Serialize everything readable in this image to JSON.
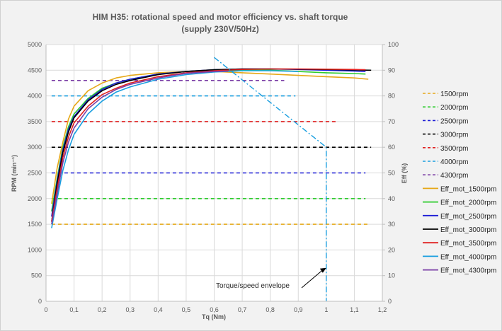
{
  "chart_data": {
    "type": "line",
    "title_line1": "HIM H35: rotational speed and motor efficiency vs. shaft torque",
    "title_line2": "(supply 230V/50Hz)",
    "xlabel": "Tq (Nm)",
    "ylabel_left": "RPM (min⁻¹)",
    "ylabel_right": "Eff (%)",
    "xlim": [
      0,
      1.2
    ],
    "ylim_left": [
      0,
      5000
    ],
    "ylim_right": [
      0,
      100
    ],
    "x_ticks": [
      "0",
      "0,1",
      "0,2",
      "0,3",
      "0,4",
      "0,5",
      "0,6",
      "0,7",
      "0,8",
      "0,9",
      "1",
      "1,1",
      "1,2"
    ],
    "y_left_ticks": [
      "0",
      "500",
      "1000",
      "1500",
      "2000",
      "2500",
      "3000",
      "3500",
      "4000",
      "4500",
      "5000"
    ],
    "y_right_ticks": [
      "0",
      "10",
      "20",
      "30",
      "40",
      "50",
      "60",
      "70",
      "80",
      "90",
      "100"
    ],
    "grid": true,
    "legend_position": "right",
    "speed_series": [
      {
        "name": "1500rpm",
        "color": "#e6a817",
        "rpm": 1500,
        "x_range": [
          0.02,
          1.15
        ]
      },
      {
        "name": "2000rpm",
        "color": "#2ecc2e",
        "rpm": 2000,
        "x_range": [
          0.02,
          1.14
        ]
      },
      {
        "name": "2500rpm",
        "color": "#1c1cd6",
        "rpm": 2500,
        "x_range": [
          0.02,
          1.14
        ]
      },
      {
        "name": "3000rpm",
        "color": "#000000",
        "rpm": 3000,
        "x_range": [
          0.02,
          1.16
        ]
      },
      {
        "name": "3500rpm",
        "color": "#e02020",
        "rpm": 3500,
        "x_range": [
          0.02,
          1.04
        ]
      },
      {
        "name": "4000rpm",
        "color": "#1a9fe0",
        "rpm": 4000,
        "x_range": [
          0.02,
          0.89
        ]
      },
      {
        "name": "4300rpm",
        "color": "#7b3fa6",
        "rpm": 4300,
        "x_range": [
          0.02,
          0.85
        ]
      }
    ],
    "efficiency_series": [
      {
        "name": "Eff_mot_1500rpm",
        "color": "#e6a817",
        "points": [
          [
            0.02,
            38
          ],
          [
            0.04,
            52
          ],
          [
            0.06,
            62
          ],
          [
            0.08,
            71
          ],
          [
            0.1,
            76
          ],
          [
            0.15,
            82
          ],
          [
            0.2,
            85
          ],
          [
            0.25,
            87
          ],
          [
            0.3,
            88
          ],
          [
            0.4,
            89
          ],
          [
            0.5,
            89.5
          ],
          [
            0.6,
            89.5
          ],
          [
            0.7,
            89
          ],
          [
            0.8,
            88.5
          ],
          [
            0.9,
            88
          ],
          [
            1.0,
            87.5
          ],
          [
            1.1,
            87
          ],
          [
            1.15,
            86.5
          ]
        ]
      },
      {
        "name": "Eff_mot_2000rpm",
        "color": "#2ecc2e",
        "points": [
          [
            0.02,
            35
          ],
          [
            0.04,
            48
          ],
          [
            0.06,
            60
          ],
          [
            0.08,
            68
          ],
          [
            0.1,
            73
          ],
          [
            0.15,
            79
          ],
          [
            0.2,
            83
          ],
          [
            0.25,
            85
          ],
          [
            0.3,
            86.5
          ],
          [
            0.4,
            88.5
          ],
          [
            0.5,
            89.5
          ],
          [
            0.6,
            90
          ],
          [
            0.7,
            90
          ],
          [
            0.8,
            90
          ],
          [
            0.9,
            89.5
          ],
          [
            1.0,
            89
          ],
          [
            1.1,
            88.7
          ],
          [
            1.14,
            88.5
          ]
        ]
      },
      {
        "name": "Eff_mot_2500rpm",
        "color": "#1c1cd6",
        "points": [
          [
            0.02,
            33
          ],
          [
            0.04,
            47
          ],
          [
            0.06,
            59
          ],
          [
            0.08,
            67
          ],
          [
            0.1,
            72
          ],
          [
            0.15,
            78.5
          ],
          [
            0.2,
            82.5
          ],
          [
            0.25,
            85
          ],
          [
            0.3,
            86.5
          ],
          [
            0.4,
            88.5
          ],
          [
            0.5,
            89.5
          ],
          [
            0.6,
            90.2
          ],
          [
            0.7,
            90.5
          ],
          [
            0.8,
            90.5
          ],
          [
            0.9,
            90.3
          ],
          [
            1.0,
            90
          ],
          [
            1.1,
            89.7
          ],
          [
            1.14,
            89.5
          ]
        ]
      },
      {
        "name": "Eff_mot_3000rpm",
        "color": "#000000",
        "points": [
          [
            0.02,
            31
          ],
          [
            0.04,
            46
          ],
          [
            0.06,
            58
          ],
          [
            0.08,
            66
          ],
          [
            0.1,
            71.5
          ],
          [
            0.15,
            78
          ],
          [
            0.2,
            82
          ],
          [
            0.25,
            84.5
          ],
          [
            0.3,
            86
          ],
          [
            0.4,
            88.3
          ],
          [
            0.5,
            89.5
          ],
          [
            0.6,
            90.2
          ],
          [
            0.7,
            90.5
          ],
          [
            0.8,
            90.5
          ],
          [
            0.9,
            90.4
          ],
          [
            1.0,
            90.3
          ],
          [
            1.1,
            90.1
          ],
          [
            1.16,
            90
          ]
        ]
      },
      {
        "name": "Eff_mot_3500rpm",
        "color": "#e02020",
        "points": [
          [
            0.02,
            31
          ],
          [
            0.04,
            44
          ],
          [
            0.06,
            56
          ],
          [
            0.08,
            64
          ],
          [
            0.1,
            69.5
          ],
          [
            0.15,
            76
          ],
          [
            0.2,
            80.5
          ],
          [
            0.25,
            83
          ],
          [
            0.3,
            85
          ],
          [
            0.4,
            87.5
          ],
          [
            0.5,
            89
          ],
          [
            0.6,
            89.8
          ],
          [
            0.7,
            90.3
          ],
          [
            0.8,
            90.5
          ],
          [
            0.9,
            90.5
          ],
          [
            1.0,
            90.4
          ],
          [
            1.1,
            90.3
          ],
          [
            1.14,
            90.2
          ]
        ]
      },
      {
        "name": "Eff_mot_4000rpm",
        "color": "#1a9fe0",
        "points": [
          [
            0.02,
            28.5
          ],
          [
            0.04,
            40
          ],
          [
            0.06,
            51
          ],
          [
            0.08,
            59
          ],
          [
            0.1,
            65
          ],
          [
            0.15,
            73
          ],
          [
            0.2,
            78
          ],
          [
            0.25,
            81.5
          ],
          [
            0.3,
            83.5
          ],
          [
            0.4,
            86.5
          ],
          [
            0.5,
            88.3
          ],
          [
            0.6,
            89.3
          ],
          [
            0.7,
            89.8
          ],
          [
            0.8,
            89.8
          ],
          [
            0.9,
            89.5
          ]
        ]
      },
      {
        "name": "Eff_mot_4300rpm",
        "color": "#7b3fa6",
        "points": [
          [
            0.02,
            30
          ],
          [
            0.04,
            42
          ],
          [
            0.06,
            54
          ],
          [
            0.08,
            62
          ],
          [
            0.1,
            67.5
          ],
          [
            0.15,
            75
          ],
          [
            0.2,
            79.5
          ],
          [
            0.25,
            82.5
          ],
          [
            0.3,
            84.5
          ],
          [
            0.4,
            87
          ],
          [
            0.5,
            88.8
          ],
          [
            0.6,
            89.5
          ],
          [
            0.65,
            89.7
          ]
        ]
      }
    ],
    "envelope": {
      "color": "#1a9fe0",
      "points": [
        [
          0.6,
          4750
        ],
        [
          1.0,
          3000
        ],
        [
          1.0,
          0
        ]
      ],
      "annotation": "Torque/speed envelope",
      "annotation_arrow_to": [
        1.0,
        650
      ]
    }
  }
}
